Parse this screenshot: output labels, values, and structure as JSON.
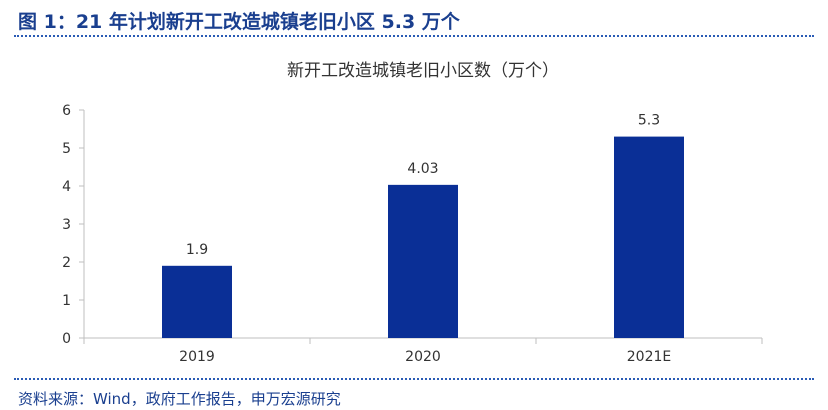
{
  "figure": {
    "title": "图 1：21 年计划新开工改造城镇老旧小区 5.3 万个",
    "source": "资料来源：Wind，政府工作报告，申万宏源研究"
  },
  "colors": {
    "bar": "#0a2f96",
    "heading": "#1a3f8f",
    "axis": "#bfbfbf",
    "text": "#333333"
  },
  "chart_data": {
    "type": "bar",
    "title": "新开工改造城镇老旧小区数（万个）",
    "categories": [
      "2019",
      "2020",
      "2021E"
    ],
    "values": [
      1.9,
      4.03,
      5.3
    ],
    "data_labels": [
      "1.9",
      "4.03",
      "5.3"
    ],
    "yticks": [
      0,
      1,
      2,
      3,
      4,
      5,
      6
    ],
    "ylim": [
      0,
      6
    ],
    "xlabel": "",
    "ylabel": "",
    "grid": false,
    "legend": "none"
  }
}
